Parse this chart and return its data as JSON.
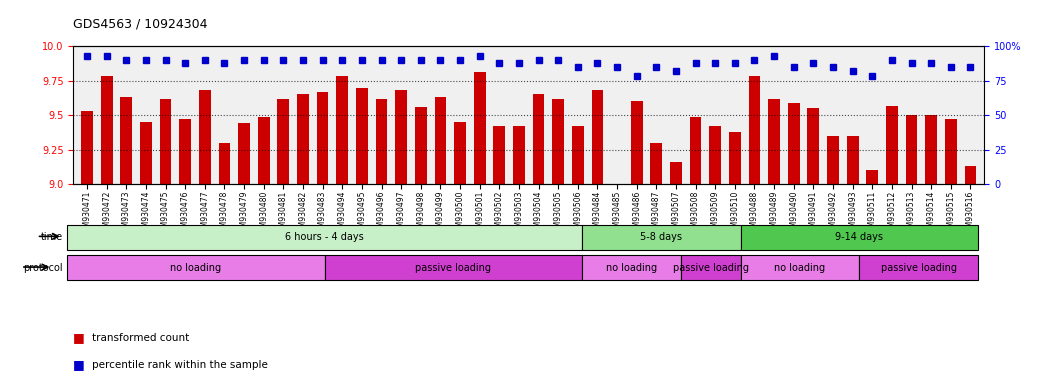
{
  "title": "GDS4563 / 10924304",
  "samples": [
    "GSM930471",
    "GSM930472",
    "GSM930473",
    "GSM930474",
    "GSM930475",
    "GSM930476",
    "GSM930477",
    "GSM930478",
    "GSM930479",
    "GSM930480",
    "GSM930481",
    "GSM930482",
    "GSM930483",
    "GSM930494",
    "GSM930495",
    "GSM930496",
    "GSM930497",
    "GSM930498",
    "GSM930499",
    "GSM930500",
    "GSM930501",
    "GSM930502",
    "GSM930503",
    "GSM930504",
    "GSM930505",
    "GSM930506",
    "GSM930484",
    "GSM930485",
    "GSM930486",
    "GSM930487",
    "GSM930507",
    "GSM930508",
    "GSM930509",
    "GSM930510",
    "GSM930488",
    "GSM930489",
    "GSM930490",
    "GSM930491",
    "GSM930492",
    "GSM930493",
    "GSM930511",
    "GSM930512",
    "GSM930513",
    "GSM930514",
    "GSM930515",
    "GSM930516"
  ],
  "bar_values": [
    9.53,
    9.78,
    9.63,
    9.45,
    9.62,
    9.47,
    9.68,
    9.3,
    9.44,
    9.49,
    9.62,
    9.65,
    9.67,
    9.78,
    9.7,
    9.62,
    9.68,
    9.56,
    9.63,
    9.45,
    9.81,
    9.42,
    9.42,
    9.65,
    9.62,
    9.42,
    9.68,
    9.0,
    9.6,
    9.3,
    9.16,
    9.49,
    9.42,
    9.38,
    9.78,
    9.62,
    9.59,
    9.55,
    9.35,
    9.35,
    9.1,
    9.57,
    9.5,
    9.5,
    9.47,
    9.13
  ],
  "percentile_values": [
    93,
    93,
    90,
    90,
    90,
    88,
    90,
    88,
    90,
    90,
    90,
    90,
    90,
    90,
    90,
    90,
    90,
    90,
    90,
    90,
    93,
    88,
    88,
    90,
    90,
    85,
    88,
    85,
    78,
    85,
    82,
    88,
    88,
    88,
    90,
    93,
    85,
    88,
    85,
    82,
    78,
    90,
    88,
    88,
    85,
    85
  ],
  "bar_color": "#cc0000",
  "percentile_color": "#0000cc",
  "ylim_left": [
    9.0,
    10.0
  ],
  "ylim_right": [
    0,
    100
  ],
  "yticks_left": [
    9.0,
    9.25,
    9.5,
    9.75,
    10.0
  ],
  "yticks_right": [
    0,
    25,
    50,
    75,
    100
  ],
  "time_groups": [
    {
      "label": "6 hours - 4 days",
      "start": 0,
      "end": 26,
      "color": "#c8f0c8"
    },
    {
      "label": "5-8 days",
      "start": 26,
      "end": 34,
      "color": "#90e090"
    },
    {
      "label": "9-14 days",
      "start": 34,
      "end": 46,
      "color": "#50c850"
    }
  ],
  "protocol_groups": [
    {
      "label": "no loading",
      "start": 0,
      "end": 13,
      "color": "#e87de8"
    },
    {
      "label": "passive loading",
      "start": 13,
      "end": 26,
      "color": "#d040d0"
    },
    {
      "label": "no loading",
      "start": 26,
      "end": 31,
      "color": "#e87de8"
    },
    {
      "label": "passive loading",
      "start": 31,
      "end": 34,
      "color": "#d040d0"
    },
    {
      "label": "no loading",
      "start": 34,
      "end": 40,
      "color": "#e87de8"
    },
    {
      "label": "passive loading",
      "start": 40,
      "end": 46,
      "color": "#d040d0"
    }
  ],
  "legend_items": [
    {
      "label": "transformed count",
      "color": "#cc0000",
      "marker": "s"
    },
    {
      "label": "percentile rank within the sample",
      "color": "#0000cc",
      "marker": "s"
    }
  ],
  "background_color": "#ffffff",
  "plot_bg_color": "#f0f0f0"
}
